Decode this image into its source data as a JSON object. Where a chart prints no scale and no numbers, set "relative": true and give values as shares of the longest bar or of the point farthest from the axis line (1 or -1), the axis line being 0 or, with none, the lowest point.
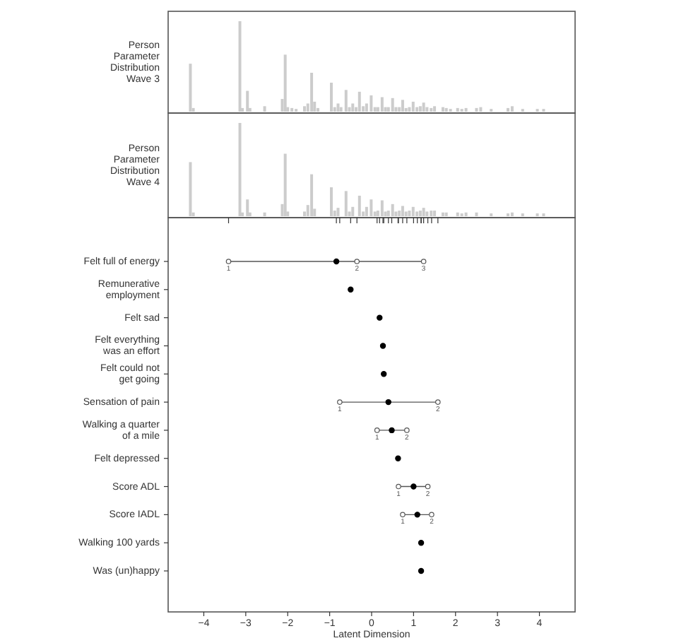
{
  "chart_data": [
    {
      "type": "bar",
      "ylabel": "Person\nParameter\nDistribution\nWave 3",
      "relative": true,
      "xlim": [
        -4.85,
        4.85
      ],
      "color": "#cccccc",
      "x": [
        -4.32,
        -4.25,
        -3.14,
        -3.08,
        -2.96,
        -2.9,
        -2.55,
        -2.13,
        -2.06,
        -2.0,
        -1.9,
        -1.8,
        -1.6,
        -1.52,
        -1.43,
        -1.36,
        -1.28,
        -0.96,
        -0.88,
        -0.8,
        -0.73,
        -0.61,
        -0.53,
        -0.45,
        -0.37,
        -0.29,
        -0.2,
        -0.12,
        -0.01,
        0.08,
        0.15,
        0.25,
        0.33,
        0.4,
        0.5,
        0.58,
        0.66,
        0.74,
        0.82,
        0.9,
        0.99,
        1.08,
        1.16,
        1.24,
        1.32,
        1.42,
        1.5,
        1.7,
        1.78,
        1.88,
        2.05,
        2.15,
        2.25,
        2.5,
        2.6,
        2.85,
        3.25,
        3.35,
        3.6,
        3.95,
        4.1
      ],
      "values": [
        0.53,
        0.04,
        1.0,
        0.04,
        0.23,
        0.04,
        0.06,
        0.14,
        0.63,
        0.05,
        0.04,
        0.03,
        0.06,
        0.09,
        0.43,
        0.11,
        0.04,
        0.32,
        0.05,
        0.09,
        0.05,
        0.24,
        0.05,
        0.09,
        0.05,
        0.22,
        0.06,
        0.09,
        0.18,
        0.05,
        0.05,
        0.16,
        0.05,
        0.05,
        0.15,
        0.05,
        0.05,
        0.13,
        0.04,
        0.05,
        0.11,
        0.05,
        0.06,
        0.1,
        0.05,
        0.04,
        0.06,
        0.05,
        0.04,
        0.03,
        0.04,
        0.03,
        0.04,
        0.04,
        0.05,
        0.03,
        0.04,
        0.06,
        0.03,
        0.03,
        0.03
      ]
    },
    {
      "type": "bar",
      "ylabel": "Person\nParameter\nDistribution\nWave 4",
      "relative": true,
      "xlim": [
        -4.85,
        4.85
      ],
      "color": "#cccccc",
      "x": [
        -4.32,
        -4.25,
        -3.14,
        -3.08,
        -2.96,
        -2.9,
        -2.55,
        -2.13,
        -2.06,
        -2.0,
        -1.6,
        -1.52,
        -1.43,
        -1.36,
        -0.96,
        -0.88,
        -0.8,
        -0.61,
        -0.53,
        -0.45,
        -0.29,
        -0.2,
        -0.12,
        -0.01,
        0.08,
        0.15,
        0.25,
        0.33,
        0.4,
        0.5,
        0.58,
        0.66,
        0.74,
        0.82,
        0.9,
        0.99,
        1.08,
        1.16,
        1.24,
        1.32,
        1.42,
        1.5,
        1.7,
        1.78,
        2.05,
        2.15,
        2.25,
        2.5,
        2.85,
        3.25,
        3.35,
        3.6,
        3.95,
        4.1
      ],
      "values": [
        0.58,
        0.04,
        1.0,
        0.04,
        0.18,
        0.04,
        0.04,
        0.13,
        0.67,
        0.05,
        0.05,
        0.12,
        0.45,
        0.08,
        0.31,
        0.06,
        0.09,
        0.27,
        0.05,
        0.1,
        0.22,
        0.05,
        0.1,
        0.18,
        0.05,
        0.06,
        0.17,
        0.05,
        0.06,
        0.13,
        0.05,
        0.06,
        0.11,
        0.05,
        0.06,
        0.1,
        0.05,
        0.06,
        0.09,
        0.05,
        0.06,
        0.06,
        0.04,
        0.04,
        0.04,
        0.03,
        0.04,
        0.04,
        0.03,
        0.03,
        0.04,
        0.03,
        0.03,
        0.03
      ]
    },
    {
      "type": "scatter",
      "orientation": "horizontal",
      "xlabel": "Latent Dimension",
      "xlim": [
        -4.85,
        4.85
      ],
      "xticks": [
        -4,
        -3,
        -2,
        -1,
        0,
        1,
        2,
        3,
        4
      ],
      "categories": [
        "Felt full of energy",
        "Remunerative\nemployment",
        "Felt sad",
        "Felt everything\nwas an effort",
        "Felt could not\nget going",
        "Sensation of pain",
        "Walking a quarter\nof a mile",
        "Felt depressed",
        "Score ADL",
        "Score IADL",
        "Walking 100 yards",
        "Was (un)happy"
      ],
      "series": [
        {
          "color": "#000000",
          "marker": "circle",
          "values": [
            -0.84,
            -0.5,
            0.19,
            0.27,
            0.29,
            0.4,
            0.48,
            0.63,
            1.0,
            1.09,
            1.18,
            1.18
          ]
        },
        {
          "name": "1",
          "color": "#555555",
          "marker": "circle",
          "values": [
            -3.41,
            null,
            null,
            null,
            null,
            -0.76,
            0.13,
            null,
            0.64,
            0.74,
            null,
            null
          ]
        },
        {
          "name": "2",
          "color": "#555555",
          "marker": "circle",
          "values": [
            -0.35,
            null,
            null,
            null,
            null,
            1.58,
            0.84,
            null,
            1.34,
            1.43,
            null,
            null
          ]
        },
        {
          "name": "3",
          "color": "#555555",
          "marker": "circle",
          "values": [
            1.24,
            null,
            null,
            null,
            null,
            null,
            null,
            null,
            null,
            null,
            null,
            null
          ]
        }
      ]
    }
  ]
}
